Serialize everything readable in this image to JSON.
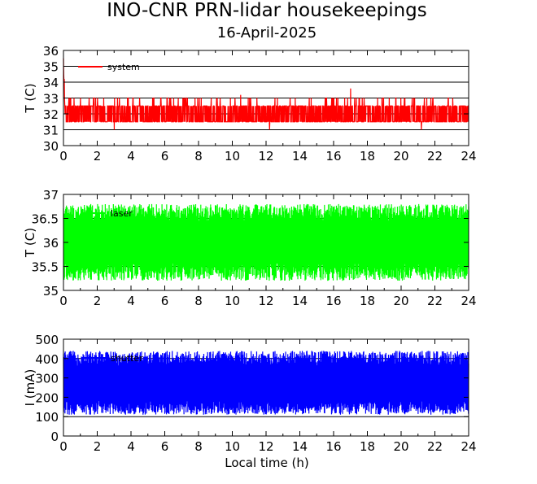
{
  "figure": {
    "title": "INO-CNR PRN-lidar housekeepings",
    "subtitle": "16-April-2025"
  },
  "chart_data": [
    {
      "type": "line",
      "ylabel": "T (C)",
      "xlabel": "",
      "xlim": [
        0,
        24
      ],
      "ylim": [
        30,
        36
      ],
      "xticks": [
        "0",
        "2",
        "4",
        "6",
        "8",
        "10",
        "12",
        "14",
        "16",
        "18",
        "20",
        "22",
        "24"
      ],
      "yticks": [
        "30",
        "31",
        "32",
        "33",
        "34",
        "35",
        "36"
      ],
      "grid_y": [
        31,
        32,
        33,
        34,
        35
      ],
      "grid": true,
      "legend_position": "top-left",
      "series": [
        {
          "name": "system",
          "color": "#ff0000",
          "low": 31.5,
          "high": 33.0,
          "x": [
            0,
            0.05,
            0.1,
            0.3,
            3.0,
            10.5,
            12.2,
            17.0,
            17.5,
            21.2,
            24
          ],
          "y": [
            35.5,
            34.2,
            32.0,
            32.5,
            31.0,
            33.2,
            31.0,
            33.6,
            33.0,
            31.0,
            32.0
          ]
        }
      ]
    },
    {
      "type": "line",
      "ylabel": "T (C)",
      "xlabel": "",
      "xlim": [
        0,
        24
      ],
      "ylim": [
        35,
        37
      ],
      "xticks": [
        "0",
        "2",
        "4",
        "6",
        "8",
        "10",
        "12",
        "14",
        "16",
        "18",
        "20",
        "22",
        "24"
      ],
      "yticks": [
        "35",
        "35.5",
        "36",
        "36.5",
        "37"
      ],
      "grid_y": [
        35.5,
        36,
        36.5
      ],
      "grid": true,
      "legend_position": "top-center",
      "series": [
        {
          "name": "laser",
          "color": "#00ff00",
          "low": 35.2,
          "high": 36.8,
          "center": 36.0
        }
      ]
    },
    {
      "type": "line",
      "ylabel": "I (mA)",
      "xlabel": "Local time (h)",
      "xlim": [
        0,
        24
      ],
      "ylim": [
        0,
        500
      ],
      "xticks": [
        "0",
        "2",
        "4",
        "6",
        "8",
        "10",
        "12",
        "14",
        "16",
        "18",
        "20",
        "22",
        "24"
      ],
      "yticks": [
        "0",
        "100",
        "200",
        "300",
        "400",
        "500"
      ],
      "grid_y": [
        100,
        200,
        300,
        400
      ],
      "grid": true,
      "legend_position": "top-center",
      "series": [
        {
          "name": "shutter",
          "color": "#0000ff",
          "low": 110,
          "high": 440,
          "center": 270
        }
      ]
    }
  ]
}
